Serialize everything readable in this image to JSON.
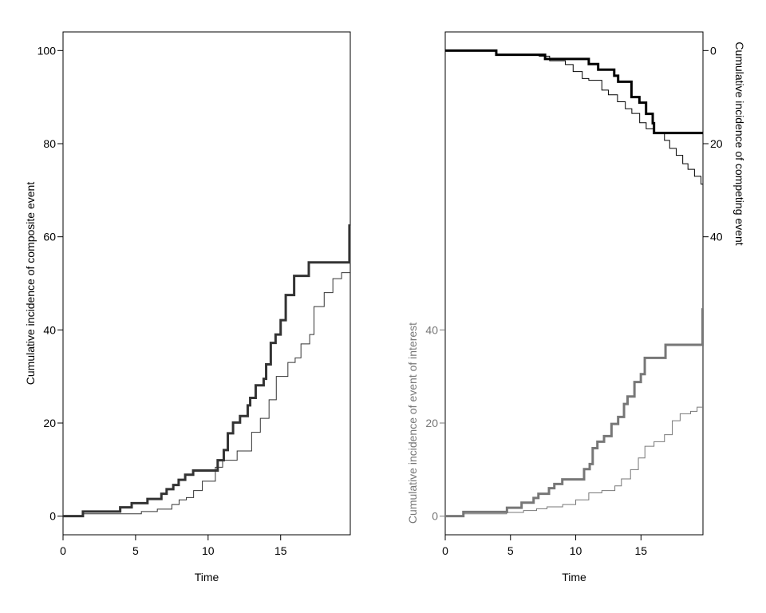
{
  "chart_data": [
    {
      "type": "line",
      "step": true,
      "xlabel": "Time",
      "ylabel": "Cumulative incidence of composite event",
      "xlim": [
        0,
        19.8
      ],
      "ylim": [
        -4,
        104
      ],
      "xticks": [
        0,
        5,
        10,
        15
      ],
      "yticks": [
        0,
        20,
        40,
        60,
        80,
        100
      ],
      "grid": false,
      "colors": {
        "axis": "#000000",
        "curve": "#333333"
      },
      "series": [
        {
          "style": "thick",
          "x": [
            0,
            1.37,
            3.94,
            4.73,
            5.82,
            6.78,
            7.14,
            7.6,
            7.97,
            8.42,
            8.97,
            10.66,
            11.08,
            11.36,
            11.72,
            12.2,
            12.73,
            12.9,
            13.28,
            13.83,
            14.0,
            14.32,
            14.65,
            15.0,
            15.35,
            15.93,
            16.94,
            19.74,
            19.8
          ],
          "y": [
            0,
            1.0,
            1.9,
            2.8,
            3.7,
            4.8,
            5.8,
            6.7,
            7.8,
            8.9,
            9.8,
            12.0,
            14.2,
            17.8,
            20.1,
            21.5,
            23.8,
            25.4,
            28.1,
            29.5,
            32.6,
            37.2,
            39.0,
            42.1,
            47.5,
            51.6,
            54.5,
            62.4,
            62.4
          ]
        },
        {
          "style": "thin",
          "x": [
            0,
            1.4,
            5.4,
            6.5,
            7.5,
            8,
            8.5,
            9,
            9.6,
            10.5,
            11,
            12,
            13,
            13.6,
            14.2,
            14.7,
            15.5,
            16,
            16.4,
            17,
            17.3,
            18,
            18.6,
            19.2,
            19.8
          ],
          "y": [
            0,
            0.5,
            1.0,
            1.5,
            2.5,
            3.5,
            4.0,
            5.5,
            7.5,
            10.5,
            12,
            14,
            18,
            21,
            25,
            30,
            33,
            34,
            37,
            39,
            45,
            48,
            51,
            52.3,
            52.3
          ]
        }
      ]
    },
    {
      "type": "line",
      "step": true,
      "xlabel": "Time",
      "ylabel": "Cumulative incidence of event of interest",
      "ylabel_right": "Cumulative incidence of competing event",
      "xlim": [
        0,
        19.75
      ],
      "ylim": [
        -4,
        104
      ],
      "xticks": [
        0,
        5,
        10,
        15
      ],
      "yticks": [
        0,
        20,
        40
      ],
      "yticks_right": [
        0,
        20,
        40
      ],
      "right_axis_reversed": true,
      "grid": false,
      "colors": {
        "axis": "#000000",
        "interest": "#777777",
        "competing": "#000000",
        "left_label": "#777777"
      },
      "series": [
        {
          "axis": "left",
          "style": "thick",
          "x": [
            0,
            1.39,
            4.73,
            5.85,
            6.77,
            7.14,
            7.95,
            8.36,
            8.97,
            10.64,
            11.07,
            11.3,
            11.66,
            12.17,
            12.74,
            13.25,
            13.7,
            13.97,
            14.5,
            14.99,
            15.29,
            16.88,
            19.72,
            19.75
          ],
          "y": [
            0,
            0.9,
            1.8,
            2.9,
            3.9,
            4.8,
            6.0,
            6.9,
            7.9,
            10.1,
            11.2,
            14.6,
            16.0,
            17.2,
            19.8,
            21.3,
            24.1,
            25.7,
            28.8,
            30.5,
            34.0,
            36.8,
            44.4,
            44.4
          ]
        },
        {
          "axis": "left",
          "style": "thin",
          "x": [
            0,
            1.4,
            4.7,
            6,
            7,
            7.8,
            9,
            10,
            11,
            12,
            13,
            13.5,
            14.2,
            14.8,
            15.3,
            16,
            16.8,
            17.4,
            18,
            18.8,
            19.3,
            19.75
          ],
          "y": [
            0,
            0.5,
            0.8,
            1.2,
            1.6,
            2,
            2.5,
            3.5,
            5,
            5.5,
            6.5,
            8,
            10,
            12.5,
            15,
            16,
            17.5,
            20.5,
            22,
            22.5,
            23.4,
            23.4
          ]
        },
        {
          "axis": "right",
          "style": "thick",
          "x": [
            0,
            3.91,
            7.65,
            11.0,
            11.72,
            12.95,
            13.25,
            14.27,
            14.88,
            15.39,
            15.9,
            16.0,
            19.75
          ],
          "y": [
            0,
            0.9,
            1.8,
            2.9,
            4.1,
            5.4,
            6.7,
            10.0,
            11.2,
            13.6,
            15.6,
            17.7,
            17.7
          ]
        },
        {
          "axis": "right",
          "style": "thin",
          "x": [
            0,
            3.9,
            7.2,
            8,
            9.2,
            9.8,
            10.5,
            11,
            12,
            12.5,
            13.2,
            13.8,
            14.3,
            14.9,
            15.4,
            16,
            16.8,
            17.2,
            17.7,
            18.2,
            18.6,
            19.1,
            19.6,
            19.75
          ],
          "y": [
            0,
            0.9,
            1.2,
            2.2,
            3,
            4.5,
            6,
            6.4,
            8.5,
            9.5,
            11,
            12.5,
            13.5,
            15.5,
            16.8,
            17.6,
            19.3,
            21,
            22.5,
            24.3,
            25.5,
            27,
            28.7,
            28.7
          ]
        }
      ]
    }
  ]
}
